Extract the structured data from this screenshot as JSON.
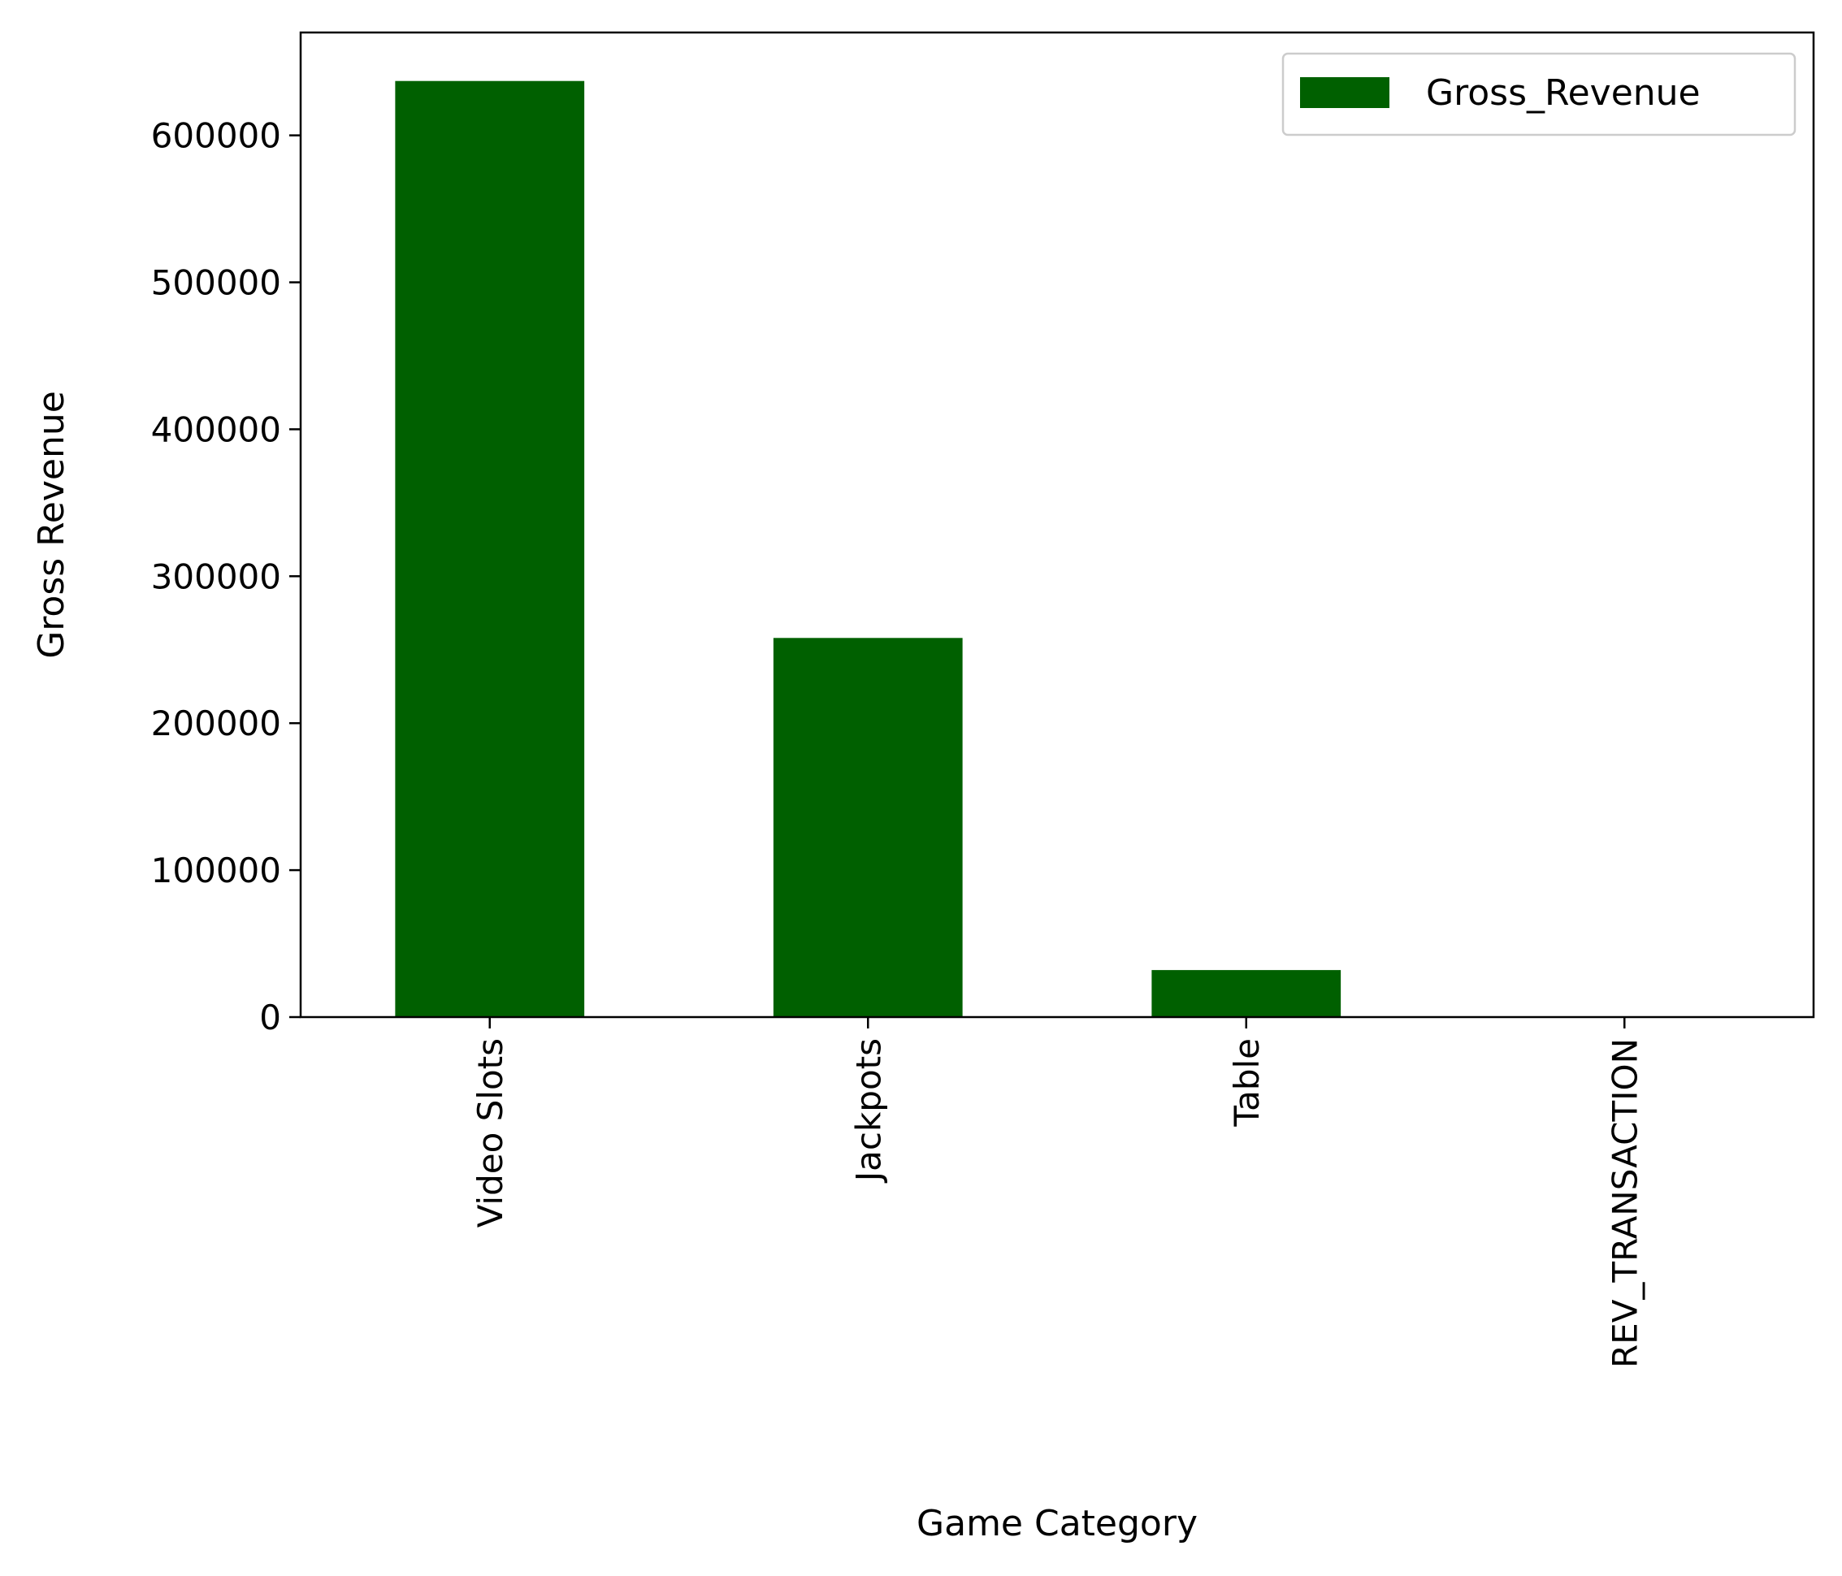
{
  "chart_data": {
    "type": "bar",
    "categories": [
      "Video Slots",
      "Jackpots",
      "Table",
      "REV_TRANSACTION"
    ],
    "series": [
      {
        "name": "Gross_Revenue",
        "values": [
          637000,
          258000,
          32000,
          0
        ]
      }
    ],
    "xlabel": "Game Category",
    "ylabel": "Gross Revenue",
    "ylim": [
      0,
      670000
    ],
    "yticks": [
      0,
      100000,
      200000,
      300000,
      400000,
      500000,
      600000
    ],
    "ytick_labels": [
      "0",
      "100000",
      "200000",
      "300000",
      "400000",
      "500000",
      "600000"
    ],
    "bar_color": "#006000",
    "legend_position": "top-right",
    "grid": false
  }
}
